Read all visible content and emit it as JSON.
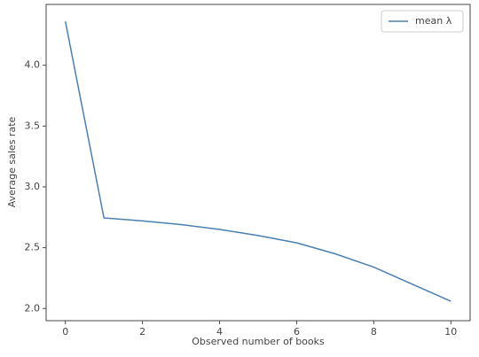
{
  "chart_data": {
    "type": "line",
    "xlabel": "Observed number of books",
    "ylabel": "Average sales rate",
    "x": [
      0,
      1,
      2,
      3,
      4,
      5,
      6,
      7,
      8,
      9,
      10
    ],
    "series": [
      {
        "name": "mean λ",
        "color": "#4a7fb1",
        "values": [
          4.36,
          2.745,
          2.72,
          2.69,
          2.65,
          2.6,
          2.54,
          2.45,
          2.34,
          2.2,
          2.06
        ]
      }
    ],
    "xlim": [
      -0.5,
      10.5
    ],
    "ylim": [
      1.9,
      4.5
    ],
    "xticks": [
      0,
      2,
      4,
      6,
      8,
      10
    ],
    "yticks": [
      {
        "value": 2.0,
        "label": "2.0"
      },
      2.5,
      {
        "value": 3.0,
        "label": "3.0"
      },
      3.5,
      {
        "value": 4.0,
        "label": "4.0"
      }
    ],
    "legend": "upper right",
    "grid": false
  }
}
